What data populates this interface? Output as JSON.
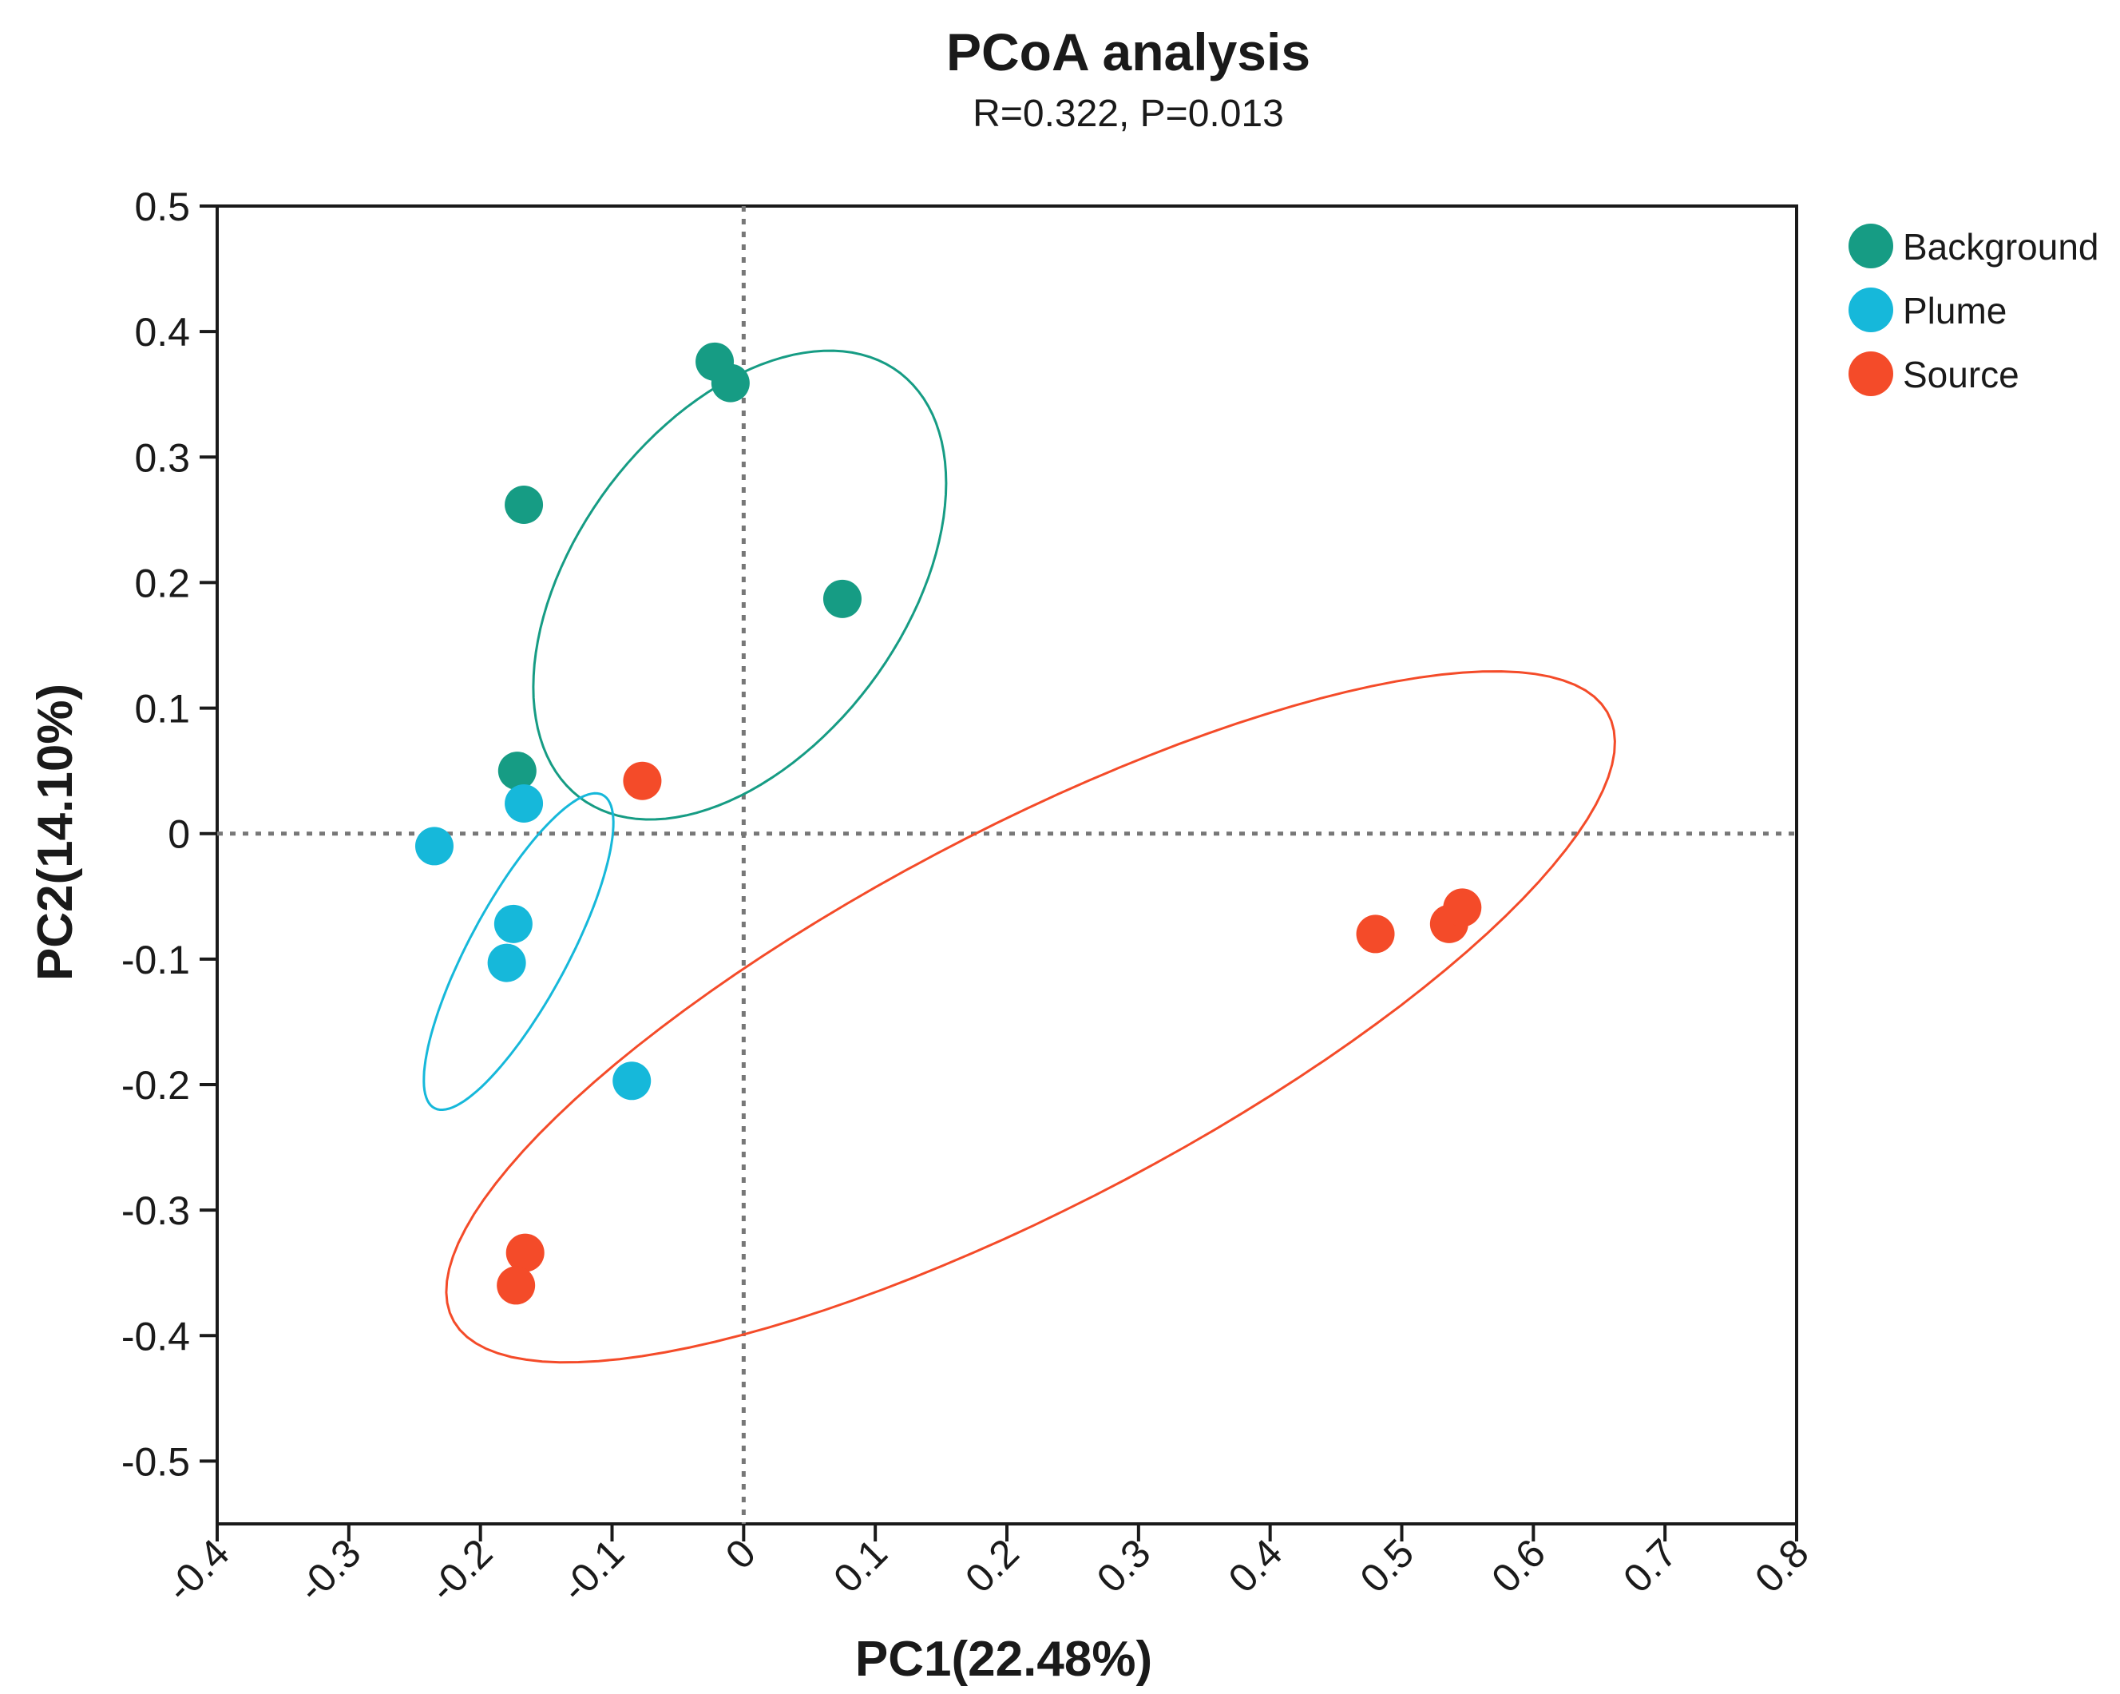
{
  "chart_data": {
    "type": "scatter",
    "title": "PCoA analysis",
    "subtitle": "R=0.322, P=0.013",
    "xlabel": "PC1(22.48%)",
    "ylabel": "PC2(14.10%)",
    "xlim": [
      -0.4,
      0.8
    ],
    "ylim": [
      -0.55,
      0.5
    ],
    "xticks": [
      -0.4,
      -0.3,
      -0.2,
      -0.1,
      0,
      0.1,
      0.2,
      0.3,
      0.4,
      0.5,
      0.6,
      0.7,
      0.8
    ],
    "xtick_labels": [
      "-0.4",
      "-0.3",
      "-0.2",
      "-0.1",
      "0",
      "0.1",
      "0.2",
      "0.3",
      "0.4",
      "0.5",
      "0.6",
      "0.7",
      "0.8"
    ],
    "yticks": [
      0.5,
      0.4,
      0.3,
      0.2,
      0.1,
      0,
      -0.1,
      -0.2,
      -0.3,
      -0.4,
      -0.5
    ],
    "ytick_labels": [
      "0.5",
      "0.4",
      "0.3",
      "0.2",
      "0.1",
      "0",
      "-0.1",
      "-0.2",
      "-0.3",
      "-0.4",
      "-0.5"
    ],
    "reference_lines": {
      "x": 0,
      "y": 0,
      "style": "dotted"
    },
    "legend_position": "outside-top-right",
    "series": [
      {
        "name": "Background",
        "color": "#169c84",
        "points": [
          [
            -0.022,
            0.376
          ],
          [
            -0.01,
            0.359
          ],
          [
            -0.167,
            0.262
          ],
          [
            0.075,
            0.187
          ],
          [
            -0.172,
            0.05
          ]
        ],
        "ellipse": {
          "center": [
            -0.003,
            0.198
          ],
          "semi_axes": [
            0.2085,
            0.1265
          ],
          "angle_deg": 56
        }
      },
      {
        "name": "Plume",
        "color": "#16b8da",
        "points": [
          [
            -0.167,
            0.024
          ],
          [
            -0.235,
            -0.01
          ],
          [
            -0.175,
            -0.072
          ],
          [
            -0.18,
            -0.103
          ],
          [
            -0.085,
            -0.197
          ]
        ],
        "ellipse": {
          "center": [
            -0.171,
            -0.094
          ],
          "semi_axes": [
            0.1402,
            0.0378
          ],
          "angle_deg": 63
        }
      },
      {
        "name": "Source",
        "color": "#f44b29",
        "points": [
          [
            -0.077,
            0.042
          ],
          [
            0.48,
            -0.08
          ],
          [
            0.536,
            -0.072
          ],
          [
            0.546,
            -0.059
          ],
          [
            -0.166,
            -0.334
          ],
          [
            -0.173,
            -0.36
          ]
        ],
        "ellipse": {
          "center": [
            0.218,
            -0.146
          ],
          "semi_axes": [
            0.5009,
            0.1483
          ],
          "angle_deg": 29
        }
      }
    ]
  }
}
